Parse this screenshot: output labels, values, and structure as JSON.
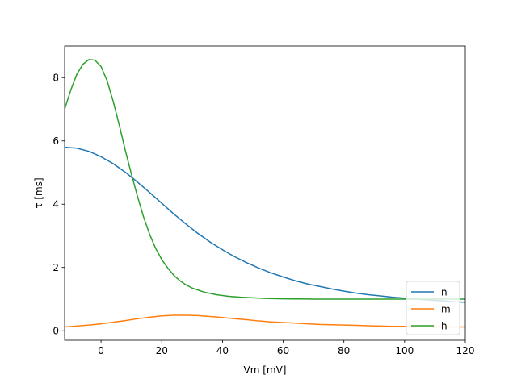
{
  "chart_data": {
    "type": "line",
    "xlabel": "Vm [mV]",
    "ylabel": "τ [ms]",
    "xlim": [
      -12,
      120
    ],
    "ylim": [
      -0.3,
      9.0
    ],
    "xticks": [
      0,
      20,
      40,
      60,
      80,
      100,
      120
    ],
    "yticks": [
      0,
      2,
      4,
      6,
      8
    ],
    "grid": false,
    "legend": {
      "placement": "lower-right"
    },
    "series": [
      {
        "name": "n",
        "color": "#1f77b4",
        "x": [
          -12,
          -8,
          -4,
          0,
          4,
          8,
          12,
          16,
          20,
          24,
          28,
          32,
          36,
          40,
          44,
          48,
          52,
          56,
          60,
          64,
          68,
          72,
          76,
          80,
          84,
          88,
          92,
          96,
          100,
          104,
          108,
          112,
          116,
          120
        ],
        "y": [
          5.8,
          5.77,
          5.67,
          5.5,
          5.28,
          5.01,
          4.7,
          4.37,
          4.03,
          3.69,
          3.37,
          3.07,
          2.8,
          2.56,
          2.34,
          2.15,
          1.98,
          1.83,
          1.7,
          1.58,
          1.48,
          1.4,
          1.32,
          1.25,
          1.19,
          1.14,
          1.1,
          1.06,
          1.03,
          1.0,
          0.97,
          0.95,
          0.92,
          0.9
        ]
      },
      {
        "name": "m",
        "color": "#ff7f0e",
        "x": [
          -12,
          -8,
          -4,
          0,
          4,
          8,
          12,
          16,
          20,
          24,
          28,
          32,
          36,
          40,
          44,
          48,
          52,
          56,
          60,
          64,
          68,
          72,
          76,
          80,
          84,
          88,
          92,
          96,
          100,
          104,
          108,
          112,
          116,
          120
        ],
        "y": [
          0.12,
          0.15,
          0.18,
          0.22,
          0.27,
          0.32,
          0.38,
          0.43,
          0.47,
          0.49,
          0.49,
          0.48,
          0.45,
          0.42,
          0.38,
          0.35,
          0.31,
          0.28,
          0.26,
          0.24,
          0.22,
          0.2,
          0.19,
          0.18,
          0.17,
          0.16,
          0.15,
          0.14,
          0.14,
          0.13,
          0.13,
          0.12,
          0.12,
          0.12
        ]
      },
      {
        "name": "h",
        "color": "#2ca02c",
        "x": [
          -12,
          -10,
          -8,
          -6,
          -4,
          -2,
          0,
          2,
          4,
          6,
          8,
          10,
          12,
          14,
          16,
          18,
          20,
          22,
          24,
          26,
          28,
          30,
          34,
          38,
          42,
          46,
          50,
          55,
          60,
          70,
          80,
          90,
          100,
          110,
          120
        ],
        "y": [
          7.0,
          7.6,
          8.1,
          8.42,
          8.57,
          8.55,
          8.35,
          7.9,
          7.25,
          6.5,
          5.7,
          4.95,
          4.25,
          3.6,
          3.05,
          2.6,
          2.25,
          1.98,
          1.75,
          1.58,
          1.45,
          1.35,
          1.22,
          1.14,
          1.09,
          1.06,
          1.04,
          1.02,
          1.01,
          1.0,
          1.0,
          1.0,
          1.0,
          1.0,
          1.0
        ]
      }
    ]
  }
}
